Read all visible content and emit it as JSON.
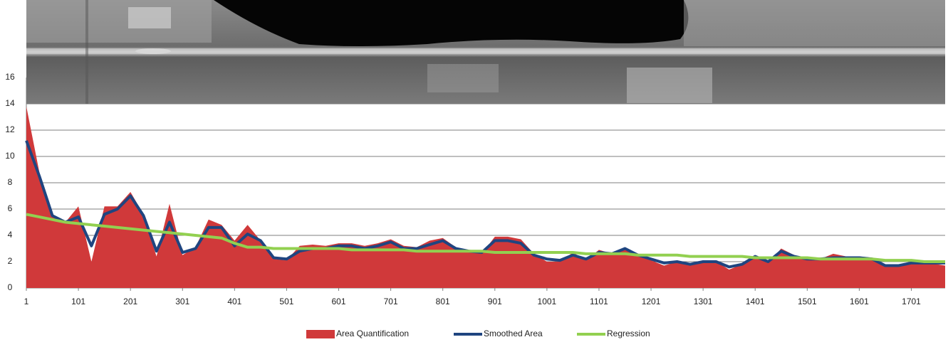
{
  "chart_data": {
    "type": "area",
    "x": [
      1,
      26,
      51,
      76,
      101,
      126,
      151,
      176,
      201,
      226,
      251,
      276,
      301,
      326,
      351,
      376,
      401,
      426,
      451,
      476,
      501,
      526,
      551,
      576,
      601,
      626,
      651,
      676,
      701,
      726,
      751,
      776,
      801,
      826,
      851,
      876,
      901,
      926,
      951,
      976,
      1001,
      1026,
      1051,
      1076,
      1101,
      1126,
      1151,
      1176,
      1201,
      1226,
      1251,
      1276,
      1301,
      1326,
      1351,
      1376,
      1401,
      1426,
      1451,
      1476,
      1501,
      1526,
      1551,
      1576,
      1601,
      1626,
      1651,
      1676,
      1701,
      1726,
      1751,
      1766
    ],
    "series": [
      {
        "name": "Area Quantification",
        "color": "#d0393a",
        "values": [
          13.8,
          8.8,
          5.4,
          5.0,
          6.2,
          2.0,
          6.2,
          6.2,
          7.3,
          5.6,
          2.4,
          6.4,
          2.5,
          3.1,
          5.2,
          4.8,
          3.6,
          4.8,
          3.6,
          2.2,
          2.1,
          3.2,
          3.3,
          3.2,
          3.4,
          3.4,
          3.2,
          3.4,
          3.7,
          3.2,
          3.1,
          3.6,
          3.8,
          3.1,
          2.8,
          2.6,
          3.9,
          3.9,
          3.7,
          2.6,
          2.0,
          2.0,
          2.7,
          2.1,
          2.9,
          2.6,
          3.1,
          2.4,
          2.1,
          1.7,
          2.0,
          1.7,
          2.1,
          2.0,
          1.4,
          1.8,
          2.5,
          1.9,
          3.0,
          2.5,
          2.2,
          2.2,
          2.6,
          2.4,
          2.4,
          2.3,
          1.6,
          1.6,
          1.9,
          1.9,
          1.8,
          1.7
        ]
      },
      {
        "name": "Smoothed Area",
        "color": "#1f4580",
        "values": [
          11.2,
          8.5,
          5.5,
          5.0,
          5.4,
          3.2,
          5.6,
          6.0,
          7.0,
          5.5,
          2.8,
          5.0,
          2.7,
          3.0,
          4.6,
          4.6,
          3.2,
          4.1,
          3.6,
          2.3,
          2.2,
          2.8,
          3.0,
          3.0,
          3.2,
          3.2,
          3.0,
          3.2,
          3.5,
          3.0,
          3.0,
          3.3,
          3.6,
          3.0,
          2.8,
          2.7,
          3.6,
          3.6,
          3.4,
          2.5,
          2.2,
          2.1,
          2.5,
          2.2,
          2.7,
          2.6,
          3.0,
          2.5,
          2.2,
          1.9,
          2.0,
          1.8,
          2.0,
          2.0,
          1.6,
          1.8,
          2.4,
          2.0,
          2.8,
          2.4,
          2.2,
          2.2,
          2.3,
          2.3,
          2.3,
          2.2,
          1.7,
          1.7,
          1.9,
          1.9,
          1.9,
          1.9
        ]
      },
      {
        "name": "Regression",
        "color": "#92d050",
        "values": [
          5.6,
          5.4,
          5.2,
          5.0,
          4.9,
          4.8,
          4.7,
          4.6,
          4.5,
          4.4,
          4.3,
          4.2,
          4.1,
          4.0,
          3.9,
          3.8,
          3.4,
          3.1,
          3.1,
          3.0,
          3.0,
          3.0,
          3.0,
          3.0,
          3.0,
          2.9,
          2.9,
          2.9,
          2.9,
          2.9,
          2.8,
          2.8,
          2.8,
          2.8,
          2.8,
          2.8,
          2.7,
          2.7,
          2.7,
          2.7,
          2.7,
          2.7,
          2.7,
          2.6,
          2.6,
          2.6,
          2.6,
          2.5,
          2.5,
          2.5,
          2.5,
          2.4,
          2.4,
          2.4,
          2.4,
          2.4,
          2.3,
          2.3,
          2.3,
          2.3,
          2.3,
          2.2,
          2.2,
          2.2,
          2.2,
          2.2,
          2.1,
          2.1,
          2.1,
          2.0,
          2.0,
          2.0
        ]
      }
    ],
    "xlim": [
      1,
      1766
    ],
    "ylim": [
      0,
      16
    ],
    "xticks": [
      1,
      101,
      201,
      301,
      401,
      501,
      601,
      701,
      801,
      901,
      1001,
      1101,
      1201,
      1301,
      1401,
      1501,
      1601,
      1701
    ],
    "yticks": [
      0,
      2,
      4,
      6,
      8,
      10,
      12,
      14,
      16
    ],
    "grid": true,
    "legend": "bottom"
  }
}
